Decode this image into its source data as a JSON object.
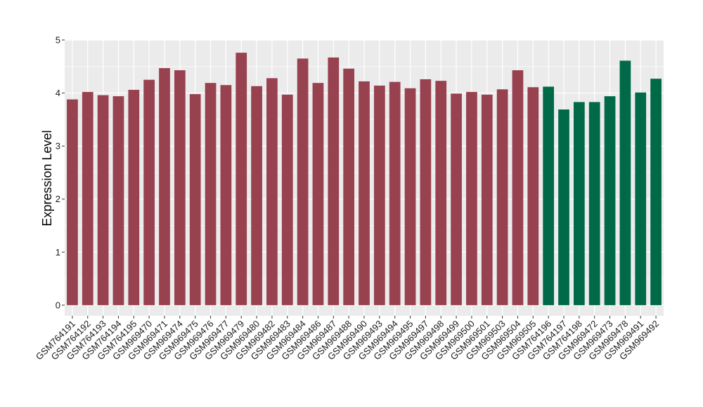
{
  "chart_data": {
    "type": "bar",
    "ylabel": "Expression Level",
    "xlabel": "",
    "ylim": [
      -0.2,
      5.0
    ],
    "yticks": [
      0,
      1,
      2,
      3,
      4,
      5
    ],
    "grid": true,
    "panel_background": "#ebebeb",
    "grid_color": "#ffffff",
    "categories": [
      "GSM764191",
      "GSM764192",
      "GSM764193",
      "GSM764194",
      "GSM764195",
      "GSM969470",
      "GSM969471",
      "GSM969474",
      "GSM969475",
      "GSM969476",
      "GSM969477",
      "GSM969479",
      "GSM969480",
      "GSM969482",
      "GSM969483",
      "GSM969484",
      "GSM969486",
      "GSM969487",
      "GSM969488",
      "GSM969490",
      "GSM969493",
      "GSM969494",
      "GSM969495",
      "GSM969497",
      "GSM969498",
      "GSM969499",
      "GSM969500",
      "GSM969501",
      "GSM969503",
      "GSM969504",
      "GSM969505",
      "GSM764196",
      "GSM764197",
      "GSM764198",
      "GSM969472",
      "GSM969473",
      "GSM969478",
      "GSM969491",
      "GSM969492"
    ],
    "values": [
      3.88,
      4.02,
      3.96,
      3.94,
      4.06,
      4.25,
      4.47,
      4.43,
      3.98,
      4.19,
      4.15,
      4.76,
      4.13,
      4.28,
      3.97,
      4.65,
      4.19,
      4.67,
      4.46,
      4.22,
      4.14,
      4.21,
      4.09,
      4.26,
      4.23,
      3.99,
      4.02,
      3.97,
      4.07,
      4.43,
      4.11,
      4.12,
      3.69,
      3.83,
      3.83,
      3.94,
      4.61,
      4.01,
      4.27
    ],
    "group_colors": [
      "#98414f",
      "#006a48"
    ],
    "bar_groups": [
      0,
      0,
      0,
      0,
      0,
      0,
      0,
      0,
      0,
      0,
      0,
      0,
      0,
      0,
      0,
      0,
      0,
      0,
      0,
      0,
      0,
      0,
      0,
      0,
      0,
      0,
      0,
      0,
      0,
      0,
      0,
      1,
      1,
      1,
      1,
      1,
      1,
      1,
      1
    ]
  }
}
